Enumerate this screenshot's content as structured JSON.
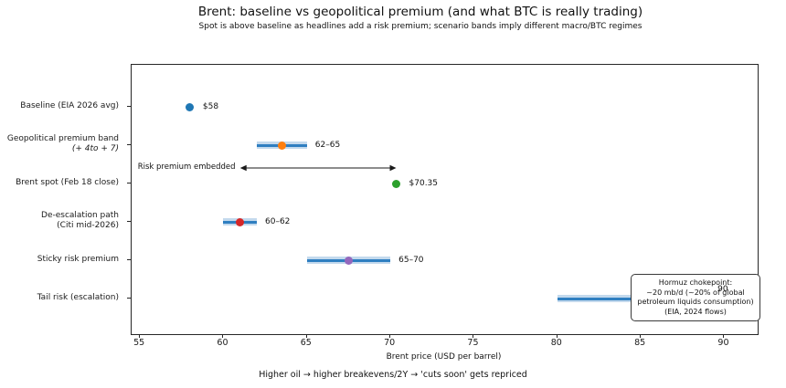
{
  "title": "Brent: baseline vs geopolitical premium (and what BTC is really trading)",
  "subtitle": "Spot is above baseline as headlines add a risk premium; scenario bands imply different macro/BTC regimes",
  "footer": "Higher oil → higher breakevens/2Y → 'cuts soon' gets repriced",
  "chart_data": {
    "type": "scatter",
    "title": "Brent: baseline vs geopolitical premium (and what BTC is really trading)",
    "subtitle": "Spot is above baseline as headlines add a risk premium; scenario bands imply different macro/BTC regimes",
    "xlabel": "Brent price (USD per barrel)",
    "xlim": [
      54.5,
      92
    ],
    "xticks": [
      55,
      60,
      65,
      70,
      75,
      80,
      85,
      90
    ],
    "grid": false,
    "band_fill_color": "#c3d9ed",
    "band_line_color": "#2f7fc1",
    "rows": [
      {
        "label_lines": [
          "Baseline (EIA 2026 avg)"
        ],
        "point": 58,
        "band": null,
        "color": "#1f77b4",
        "value_label": "$58"
      },
      {
        "label_lines": [
          "Geopolitical premium band",
          "(+ 4to + 7)"
        ],
        "italic_line2": true,
        "point": 63.5,
        "band": [
          62,
          65
        ],
        "color": "#ff7f0e",
        "value_label": "62–65"
      },
      {
        "label_lines": [
          "Brent spot (Feb 18 close)"
        ],
        "point": 70.35,
        "band": null,
        "color": "#2ca02c",
        "value_label": "$70.35"
      },
      {
        "label_lines": [
          "De-escalation path",
          "(Citi mid-2026)"
        ],
        "point": 61,
        "band": [
          60,
          62
        ],
        "color": "#d62728",
        "value_label": "60–62"
      },
      {
        "label_lines": [
          "Sticky risk premium"
        ],
        "point": 67.5,
        "band": [
          65,
          70
        ],
        "color": "#9467bd",
        "value_label": "65–70"
      },
      {
        "label_lines": [
          "Tail risk (escalation)"
        ],
        "point": 85,
        "band": [
          80,
          90
        ],
        "color": "#8c564b",
        "value_label": "90",
        "value_label_x": 89.6,
        "value_label_dy": -16,
        "value_on_top": true
      }
    ],
    "arrow": {
      "label": "Risk premium embedded",
      "x_start": 61,
      "x_end": 70.35
    },
    "note_box": {
      "lines": [
        "Hormuz chokepoint:",
        "~20 mb/d (~20% of global",
        "petroleum liquids consumption)",
        "(EIA, 2024 flows)"
      ]
    }
  }
}
